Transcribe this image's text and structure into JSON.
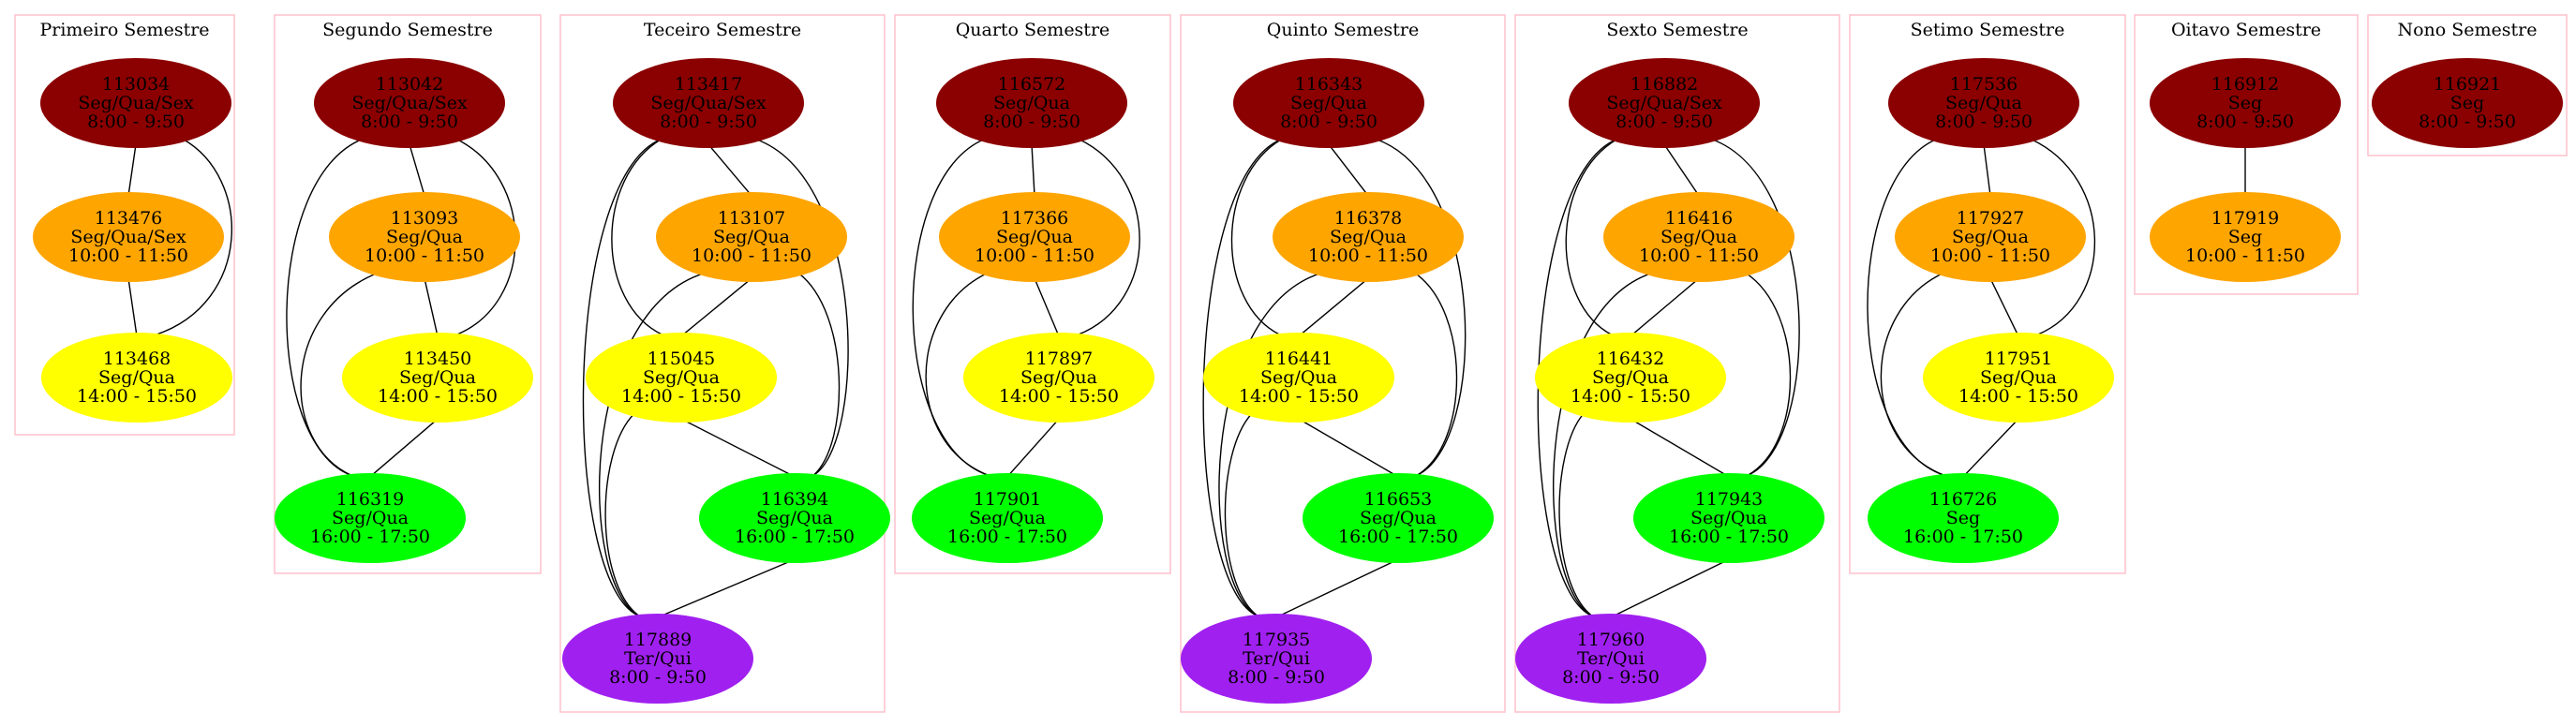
{
  "colors": {
    "manha": "#8b0000",
    "tarde1": "#ffa500",
    "tarde2": "#ffff00",
    "tarde3": "#00ff00",
    "especial": "#a020f0",
    "cluster_border": "#ffc0cb"
  },
  "semesters": [
    {
      "id": "s1",
      "title": "Primeiro Semestre",
      "nodes": [
        {
          "id": "113034",
          "color": "manha",
          "lines": [
            "113034",
            "Seg/Qua/Sex",
            "8:00 - 9:50"
          ]
        },
        {
          "id": "113476",
          "color": "tarde1",
          "lines": [
            "113476",
            "Seg/Qua/Sex",
            "10:00 - 11:50"
          ]
        },
        {
          "id": "113468",
          "color": "tarde2",
          "lines": [
            "113468",
            "Seg/Qua",
            "14:00 - 15:50"
          ]
        }
      ]
    },
    {
      "id": "s2",
      "title": "Segundo Semestre",
      "nodes": [
        {
          "id": "113042",
          "color": "manha",
          "lines": [
            "113042",
            "Seg/Qua/Sex",
            "8:00 - 9:50"
          ]
        },
        {
          "id": "113093",
          "color": "tarde1",
          "lines": [
            "113093",
            "Seg/Qua",
            "10:00 - 11:50"
          ]
        },
        {
          "id": "113450",
          "color": "tarde2",
          "lines": [
            "113450",
            "Seg/Qua",
            "14:00 - 15:50"
          ]
        },
        {
          "id": "116319",
          "color": "tarde3",
          "lines": [
            "116319",
            "Seg/Qua",
            "16:00 - 17:50"
          ]
        }
      ]
    },
    {
      "id": "s3",
      "title": "Teceiro Semestre",
      "nodes": [
        {
          "id": "113417",
          "color": "manha",
          "lines": [
            "113417",
            "Seg/Qua/Sex",
            "8:00 - 9:50"
          ]
        },
        {
          "id": "113107",
          "color": "tarde1",
          "lines": [
            "113107",
            "Seg/Qua",
            "10:00 - 11:50"
          ]
        },
        {
          "id": "115045",
          "color": "tarde2",
          "lines": [
            "115045",
            "Seg/Qua",
            "14:00 - 15:50"
          ]
        },
        {
          "id": "116394",
          "color": "tarde3",
          "lines": [
            "116394",
            "Seg/Qua",
            "16:00 - 17:50"
          ]
        },
        {
          "id": "117889",
          "color": "especial",
          "lines": [
            "117889",
            "Ter/Qui",
            "8:00 - 9:50"
          ]
        }
      ]
    },
    {
      "id": "s4",
      "title": "Quarto Semestre",
      "nodes": [
        {
          "id": "116572",
          "color": "manha",
          "lines": [
            "116572",
            "Seg/Qua",
            "8:00 - 9:50"
          ]
        },
        {
          "id": "117366",
          "color": "tarde1",
          "lines": [
            "117366",
            "Seg/Qua",
            "10:00 - 11:50"
          ]
        },
        {
          "id": "117897",
          "color": "tarde2",
          "lines": [
            "117897",
            "Seg/Qua",
            "14:00 - 15:50"
          ]
        },
        {
          "id": "117901",
          "color": "tarde3",
          "lines": [
            "117901",
            "Seg/Qua",
            "16:00 - 17:50"
          ]
        }
      ]
    },
    {
      "id": "s5",
      "title": "Quinto Semestre",
      "nodes": [
        {
          "id": "116343",
          "color": "manha",
          "lines": [
            "116343",
            "Seg/Qua",
            "8:00 - 9:50"
          ]
        },
        {
          "id": "116378",
          "color": "tarde1",
          "lines": [
            "116378",
            "Seg/Qua",
            "10:00 - 11:50"
          ]
        },
        {
          "id": "116441",
          "color": "tarde2",
          "lines": [
            "116441",
            "Seg/Qua",
            "14:00 - 15:50"
          ]
        },
        {
          "id": "116653",
          "color": "tarde3",
          "lines": [
            "116653",
            "Seg/Qua",
            "16:00 - 17:50"
          ]
        },
        {
          "id": "117935",
          "color": "especial",
          "lines": [
            "117935",
            "Ter/Qui",
            "8:00 - 9:50"
          ]
        }
      ]
    },
    {
      "id": "s6",
      "title": "Sexto Semestre",
      "nodes": [
        {
          "id": "116882",
          "color": "manha",
          "lines": [
            "116882",
            "Seg/Qua/Sex",
            "8:00 - 9:50"
          ]
        },
        {
          "id": "116416",
          "color": "tarde1",
          "lines": [
            "116416",
            "Seg/Qua",
            "10:00 - 11:50"
          ]
        },
        {
          "id": "116432",
          "color": "tarde2",
          "lines": [
            "116432",
            "Seg/Qua",
            "14:00 - 15:50"
          ]
        },
        {
          "id": "117943",
          "color": "tarde3",
          "lines": [
            "117943",
            "Seg/Qua",
            "16:00 - 17:50"
          ]
        },
        {
          "id": "117960",
          "color": "especial",
          "lines": [
            "117960",
            "Ter/Qui",
            "8:00 - 9:50"
          ]
        }
      ]
    },
    {
      "id": "s7",
      "title": "Setimo Semestre",
      "nodes": [
        {
          "id": "117536",
          "color": "manha",
          "lines": [
            "117536",
            "Seg/Qua",
            "8:00 - 9:50"
          ]
        },
        {
          "id": "117927",
          "color": "tarde1",
          "lines": [
            "117927",
            "Seg/Qua",
            "10:00 - 11:50"
          ]
        },
        {
          "id": "117951",
          "color": "tarde2",
          "lines": [
            "117951",
            "Seg/Qua",
            "14:00 - 15:50"
          ]
        },
        {
          "id": "116726",
          "color": "tarde3",
          "lines": [
            "116726",
            "Seg",
            "16:00 - 17:50"
          ]
        }
      ]
    },
    {
      "id": "s8",
      "title": "Oitavo Semestre",
      "nodes": [
        {
          "id": "116912",
          "color": "manha",
          "lines": [
            "116912",
            "Seg",
            "8:00 - 9:50"
          ]
        },
        {
          "id": "117919",
          "color": "tarde1",
          "lines": [
            "117919",
            "Seg",
            "10:00 - 11:50"
          ]
        }
      ]
    },
    {
      "id": "s9",
      "title": "Nono Semestre",
      "nodes": [
        {
          "id": "116921",
          "color": "manha",
          "lines": [
            "116921",
            "Seg",
            "8:00 - 9:50"
          ]
        }
      ]
    }
  ],
  "edges": [
    [
      "113034",
      "113476"
    ],
    [
      "113034",
      "113468"
    ],
    [
      "113476",
      "113468"
    ],
    [
      "113042",
      "113093"
    ],
    [
      "113042",
      "113450"
    ],
    [
      "113042",
      "116319"
    ],
    [
      "113093",
      "113450"
    ],
    [
      "113093",
      "116319"
    ],
    [
      "113450",
      "116319"
    ],
    [
      "113417",
      "113107"
    ],
    [
      "113417",
      "115045"
    ],
    [
      "113417",
      "116394"
    ],
    [
      "113417",
      "117889"
    ],
    [
      "113107",
      "115045"
    ],
    [
      "113107",
      "116394"
    ],
    [
      "113107",
      "117889"
    ],
    [
      "115045",
      "116394"
    ],
    [
      "115045",
      "117889"
    ],
    [
      "116394",
      "117889"
    ],
    [
      "116572",
      "117366"
    ],
    [
      "116572",
      "117897"
    ],
    [
      "116572",
      "117901"
    ],
    [
      "117366",
      "117897"
    ],
    [
      "117366",
      "117901"
    ],
    [
      "117897",
      "117901"
    ],
    [
      "116343",
      "116378"
    ],
    [
      "116343",
      "116441"
    ],
    [
      "116343",
      "116653"
    ],
    [
      "116343",
      "117935"
    ],
    [
      "116378",
      "116441"
    ],
    [
      "116378",
      "116653"
    ],
    [
      "116378",
      "117935"
    ],
    [
      "116441",
      "116653"
    ],
    [
      "116441",
      "117935"
    ],
    [
      "116653",
      "117935"
    ],
    [
      "116882",
      "116416"
    ],
    [
      "116882",
      "116432"
    ],
    [
      "116882",
      "117943"
    ],
    [
      "116882",
      "117960"
    ],
    [
      "116416",
      "116432"
    ],
    [
      "116416",
      "117943"
    ],
    [
      "116416",
      "117960"
    ],
    [
      "116432",
      "117943"
    ],
    [
      "116432",
      "117960"
    ],
    [
      "117943",
      "117960"
    ],
    [
      "117536",
      "117927"
    ],
    [
      "117536",
      "117951"
    ],
    [
      "117536",
      "116726"
    ],
    [
      "117927",
      "117951"
    ],
    [
      "117927",
      "116726"
    ],
    [
      "117951",
      "116726"
    ],
    [
      "116912",
      "117919"
    ]
  ]
}
